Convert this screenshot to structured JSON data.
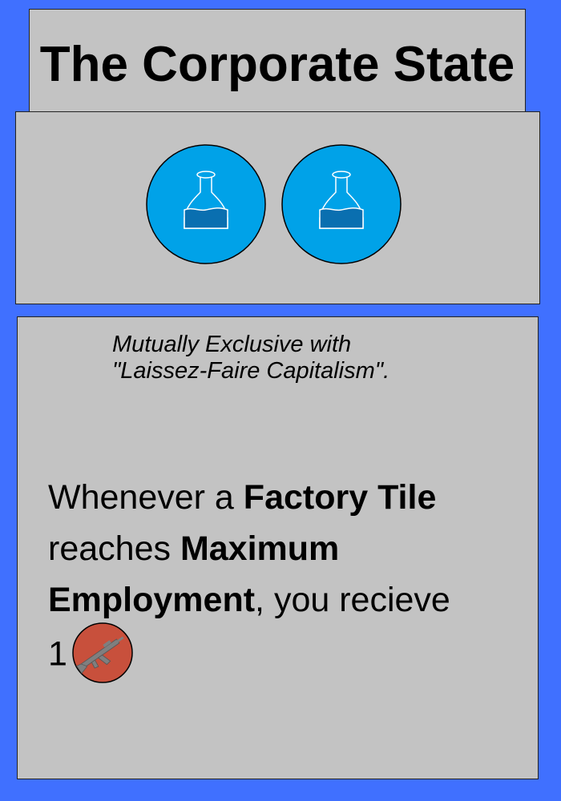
{
  "card": {
    "title": "The Corporate State",
    "icons": [
      "science-flask-icon",
      "science-flask-icon"
    ],
    "note_line1": "Mutually Exclusive with",
    "note_line2": "\"Laissez-Faire Capitalism\".",
    "effect": {
      "part1": "Whenever a ",
      "bold1": "Factory Tile",
      "part2": " reaches ",
      "bold2": "Maximum Employment",
      "part3": ", you recieve",
      "amount": "1",
      "reward_icon": "rifle-icon"
    }
  },
  "colors": {
    "background": "#4070ff",
    "panel": "#c3c3c3",
    "science_circle": "#00a2e8",
    "flask_liquid": "#0a6fb0",
    "weapon_circle": "#c8503c",
    "weapon": "#7f7f7f"
  }
}
